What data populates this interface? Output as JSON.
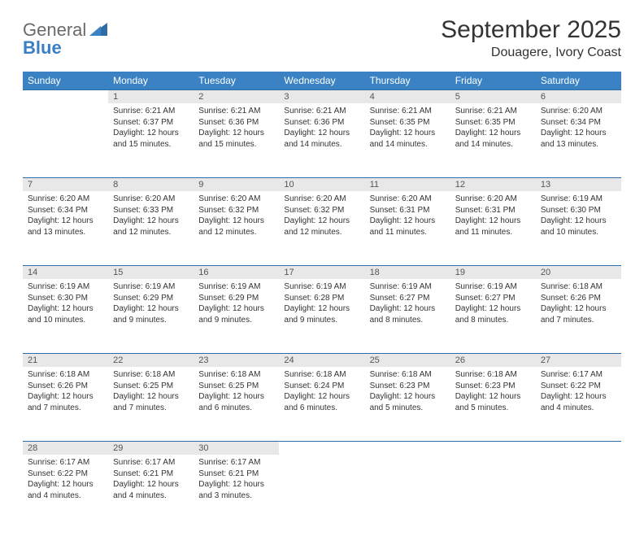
{
  "brand": {
    "general": "General",
    "blue": "Blue"
  },
  "title": "September 2025",
  "location": "Douagere, Ivory Coast",
  "colors": {
    "header_bg": "#3a82c4",
    "header_text": "#ffffff",
    "daynum_bg": "#e8e8e8",
    "row_divider": "#2f6ca6",
    "body_text": "#333333",
    "logo_gray": "#6a6a6a",
    "logo_blue": "#3a7fc4"
  },
  "day_headers": [
    "Sunday",
    "Monday",
    "Tuesday",
    "Wednesday",
    "Thursday",
    "Friday",
    "Saturday"
  ],
  "weeks": [
    {
      "nums": [
        "",
        "1",
        "2",
        "3",
        "4",
        "5",
        "6"
      ],
      "cells": [
        null,
        {
          "sunrise": "Sunrise: 6:21 AM",
          "sunset": "Sunset: 6:37 PM",
          "d1": "Daylight: 12 hours",
          "d2": "and 15 minutes."
        },
        {
          "sunrise": "Sunrise: 6:21 AM",
          "sunset": "Sunset: 6:36 PM",
          "d1": "Daylight: 12 hours",
          "d2": "and 15 minutes."
        },
        {
          "sunrise": "Sunrise: 6:21 AM",
          "sunset": "Sunset: 6:36 PM",
          "d1": "Daylight: 12 hours",
          "d2": "and 14 minutes."
        },
        {
          "sunrise": "Sunrise: 6:21 AM",
          "sunset": "Sunset: 6:35 PM",
          "d1": "Daylight: 12 hours",
          "d2": "and 14 minutes."
        },
        {
          "sunrise": "Sunrise: 6:21 AM",
          "sunset": "Sunset: 6:35 PM",
          "d1": "Daylight: 12 hours",
          "d2": "and 14 minutes."
        },
        {
          "sunrise": "Sunrise: 6:20 AM",
          "sunset": "Sunset: 6:34 PM",
          "d1": "Daylight: 12 hours",
          "d2": "and 13 minutes."
        }
      ]
    },
    {
      "nums": [
        "7",
        "8",
        "9",
        "10",
        "11",
        "12",
        "13"
      ],
      "cells": [
        {
          "sunrise": "Sunrise: 6:20 AM",
          "sunset": "Sunset: 6:34 PM",
          "d1": "Daylight: 12 hours",
          "d2": "and 13 minutes."
        },
        {
          "sunrise": "Sunrise: 6:20 AM",
          "sunset": "Sunset: 6:33 PM",
          "d1": "Daylight: 12 hours",
          "d2": "and 12 minutes."
        },
        {
          "sunrise": "Sunrise: 6:20 AM",
          "sunset": "Sunset: 6:32 PM",
          "d1": "Daylight: 12 hours",
          "d2": "and 12 minutes."
        },
        {
          "sunrise": "Sunrise: 6:20 AM",
          "sunset": "Sunset: 6:32 PM",
          "d1": "Daylight: 12 hours",
          "d2": "and 12 minutes."
        },
        {
          "sunrise": "Sunrise: 6:20 AM",
          "sunset": "Sunset: 6:31 PM",
          "d1": "Daylight: 12 hours",
          "d2": "and 11 minutes."
        },
        {
          "sunrise": "Sunrise: 6:20 AM",
          "sunset": "Sunset: 6:31 PM",
          "d1": "Daylight: 12 hours",
          "d2": "and 11 minutes."
        },
        {
          "sunrise": "Sunrise: 6:19 AM",
          "sunset": "Sunset: 6:30 PM",
          "d1": "Daylight: 12 hours",
          "d2": "and 10 minutes."
        }
      ]
    },
    {
      "nums": [
        "14",
        "15",
        "16",
        "17",
        "18",
        "19",
        "20"
      ],
      "cells": [
        {
          "sunrise": "Sunrise: 6:19 AM",
          "sunset": "Sunset: 6:30 PM",
          "d1": "Daylight: 12 hours",
          "d2": "and 10 minutes."
        },
        {
          "sunrise": "Sunrise: 6:19 AM",
          "sunset": "Sunset: 6:29 PM",
          "d1": "Daylight: 12 hours",
          "d2": "and 9 minutes."
        },
        {
          "sunrise": "Sunrise: 6:19 AM",
          "sunset": "Sunset: 6:29 PM",
          "d1": "Daylight: 12 hours",
          "d2": "and 9 minutes."
        },
        {
          "sunrise": "Sunrise: 6:19 AM",
          "sunset": "Sunset: 6:28 PM",
          "d1": "Daylight: 12 hours",
          "d2": "and 9 minutes."
        },
        {
          "sunrise": "Sunrise: 6:19 AM",
          "sunset": "Sunset: 6:27 PM",
          "d1": "Daylight: 12 hours",
          "d2": "and 8 minutes."
        },
        {
          "sunrise": "Sunrise: 6:19 AM",
          "sunset": "Sunset: 6:27 PM",
          "d1": "Daylight: 12 hours",
          "d2": "and 8 minutes."
        },
        {
          "sunrise": "Sunrise: 6:18 AM",
          "sunset": "Sunset: 6:26 PM",
          "d1": "Daylight: 12 hours",
          "d2": "and 7 minutes."
        }
      ]
    },
    {
      "nums": [
        "21",
        "22",
        "23",
        "24",
        "25",
        "26",
        "27"
      ],
      "cells": [
        {
          "sunrise": "Sunrise: 6:18 AM",
          "sunset": "Sunset: 6:26 PM",
          "d1": "Daylight: 12 hours",
          "d2": "and 7 minutes."
        },
        {
          "sunrise": "Sunrise: 6:18 AM",
          "sunset": "Sunset: 6:25 PM",
          "d1": "Daylight: 12 hours",
          "d2": "and 7 minutes."
        },
        {
          "sunrise": "Sunrise: 6:18 AM",
          "sunset": "Sunset: 6:25 PM",
          "d1": "Daylight: 12 hours",
          "d2": "and 6 minutes."
        },
        {
          "sunrise": "Sunrise: 6:18 AM",
          "sunset": "Sunset: 6:24 PM",
          "d1": "Daylight: 12 hours",
          "d2": "and 6 minutes."
        },
        {
          "sunrise": "Sunrise: 6:18 AM",
          "sunset": "Sunset: 6:23 PM",
          "d1": "Daylight: 12 hours",
          "d2": "and 5 minutes."
        },
        {
          "sunrise": "Sunrise: 6:18 AM",
          "sunset": "Sunset: 6:23 PM",
          "d1": "Daylight: 12 hours",
          "d2": "and 5 minutes."
        },
        {
          "sunrise": "Sunrise: 6:17 AM",
          "sunset": "Sunset: 6:22 PM",
          "d1": "Daylight: 12 hours",
          "d2": "and 4 minutes."
        }
      ]
    },
    {
      "nums": [
        "28",
        "29",
        "30",
        "",
        "",
        "",
        ""
      ],
      "cells": [
        {
          "sunrise": "Sunrise: 6:17 AM",
          "sunset": "Sunset: 6:22 PM",
          "d1": "Daylight: 12 hours",
          "d2": "and 4 minutes."
        },
        {
          "sunrise": "Sunrise: 6:17 AM",
          "sunset": "Sunset: 6:21 PM",
          "d1": "Daylight: 12 hours",
          "d2": "and 4 minutes."
        },
        {
          "sunrise": "Sunrise: 6:17 AM",
          "sunset": "Sunset: 6:21 PM",
          "d1": "Daylight: 12 hours",
          "d2": "and 3 minutes."
        },
        null,
        null,
        null,
        null
      ]
    }
  ]
}
